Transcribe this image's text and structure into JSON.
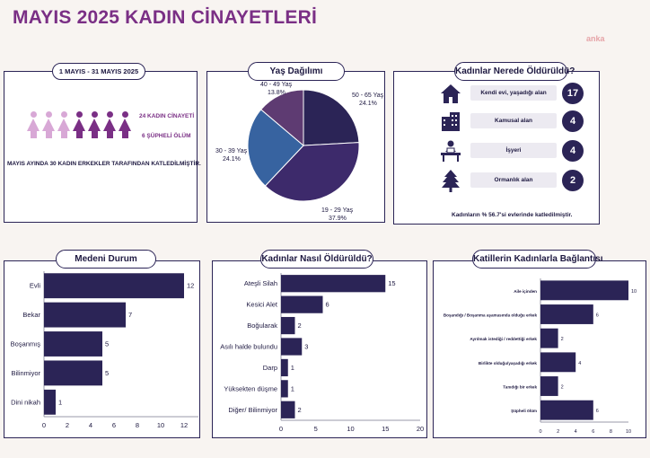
{
  "page_title": "MAYIS 2025 KADIN CİNAYETLERİ",
  "logo_text": "anka",
  "summary": {
    "pill": "1 MAYIS - 31 MAYIS 2025",
    "stat1": "24 KADIN CİNAYETİ",
    "stat2": "6 ŞÜPHELİ ÖLÜM",
    "footer": "MAYIS AYINDA 30 KADIN ERKEKLER TARAFINDAN KATLEDİLMİŞTİR.",
    "figures": [
      {
        "color": "#d8a8d6",
        "count": 3
      },
      {
        "color": "#7a2f85",
        "count": 4
      }
    ]
  },
  "location": {
    "pill": "Kadınlar Nerede Öldürüldü?",
    "items": [
      {
        "icon": "house-icon",
        "label": "Kendi evi, yaşadığı alan",
        "value": "17"
      },
      {
        "icon": "building-icon",
        "label": "Kamusal alan",
        "value": "4"
      },
      {
        "icon": "office-worker-icon",
        "label": "İşyeri",
        "value": "4"
      },
      {
        "icon": "tree-icon",
        "label": "Ormanlık alan",
        "value": "2"
      }
    ],
    "footer": "Kadınların % 56.7'si evlerinde katledilmiştir."
  },
  "chart_data": [
    {
      "type": "pie",
      "title": "Yaş Dağılımı",
      "categories": [
        "50 - 65 Yaş",
        "19 - 29 Yaş",
        "30 - 39 Yaş",
        "40 - 49 Yaş"
      ],
      "values": [
        24.1,
        37.9,
        24.1,
        13.8
      ],
      "labels": [
        "24.1%",
        "37.9%",
        "24.1%",
        "13.8%"
      ],
      "colors": [
        "#2b2456",
        "#3d2a6b",
        "#3763a0",
        "#5e3b72"
      ]
    },
    {
      "type": "bar",
      "orientation": "horizontal",
      "title": "Medeni Durum",
      "categories": [
        "Evli",
        "Bekar",
        "Boşanmış",
        "Bilinmiyor",
        "Dini nikah"
      ],
      "values": [
        12,
        7,
        5,
        5,
        1
      ],
      "xlim": [
        0,
        14
      ],
      "ticks": [
        0,
        2,
        4,
        6,
        8,
        10,
        12
      ],
      "grid": false
    },
    {
      "type": "bar",
      "orientation": "horizontal",
      "title": "Kadınlar Nasıl Öldürüldü?",
      "categories": [
        "Ateşli Silah",
        "Kesici Alet",
        "Boğularak",
        "Asılı halde bulundu",
        "Darp",
        "Yüksekten düşme",
        "Diğer/ Bilinmiyor"
      ],
      "values": [
        15,
        6,
        2,
        3,
        1,
        1,
        2
      ],
      "xlim": [
        0,
        20
      ],
      "ticks": [
        0,
        5,
        10,
        15,
        20
      ],
      "grid": false
    },
    {
      "type": "bar",
      "orientation": "horizontal",
      "title": "Katillerin Kadınlarla Bağlantısı",
      "categories": [
        "Aile içinden",
        "Boşandığı / Boşanma aşamasında olduğu erkek",
        "Ayrılmak istediği / reddettiği erkek",
        "Birlikte olduğu/yaşadığı erkek",
        "Tanıdığı bir erkek",
        "Şüpheli ölüm"
      ],
      "values": [
        10,
        6,
        2,
        4,
        2,
        6
      ],
      "xlim": [
        0,
        10
      ],
      "ticks": [
        0,
        2,
        4,
        6,
        8,
        10
      ],
      "grid": false
    }
  ]
}
